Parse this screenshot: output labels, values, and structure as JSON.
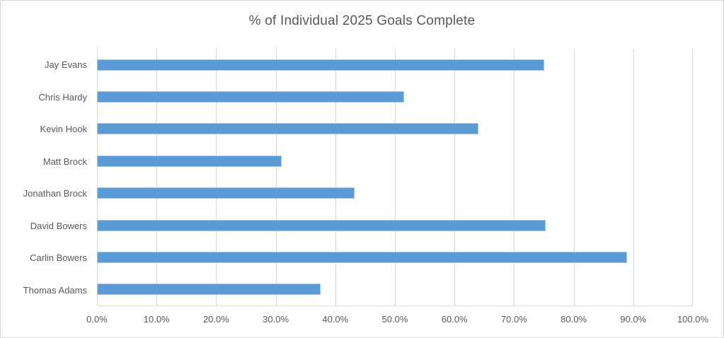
{
  "chart_data": {
    "type": "bar",
    "orientation": "horizontal",
    "title": "% of Individual 2025 Goals Complete",
    "categories": [
      "Jay Evans",
      "Chris Hardy",
      "Kevin Hook",
      "Matt Brock",
      "Jonathan Brock",
      "David Bowers",
      "Carlin Bowers",
      "Thomas Adams"
    ],
    "values": [
      75,
      51.5,
      64,
      31,
      43.2,
      75.3,
      88.9,
      37.5
    ],
    "xlabel": "",
    "ylabel": "",
    "xlim": [
      0,
      100
    ],
    "x_ticks": [
      "0.0%",
      "10.0%",
      "20.0%",
      "30.0%",
      "40.0%",
      "50.0%",
      "60.0%",
      "70.0%",
      "80.0%",
      "90.0%",
      "100.0%"
    ],
    "grid": "vertical-only",
    "legend": "none",
    "colors": {
      "bar_fill": "#5b9bd5",
      "bar_border": "#a3c6e8",
      "gridline": "#d9d9d9",
      "axis_line": "#d9d9d9",
      "text": "#595959",
      "background": "#ffffff",
      "frame_border": "#d7d7d7"
    }
  }
}
